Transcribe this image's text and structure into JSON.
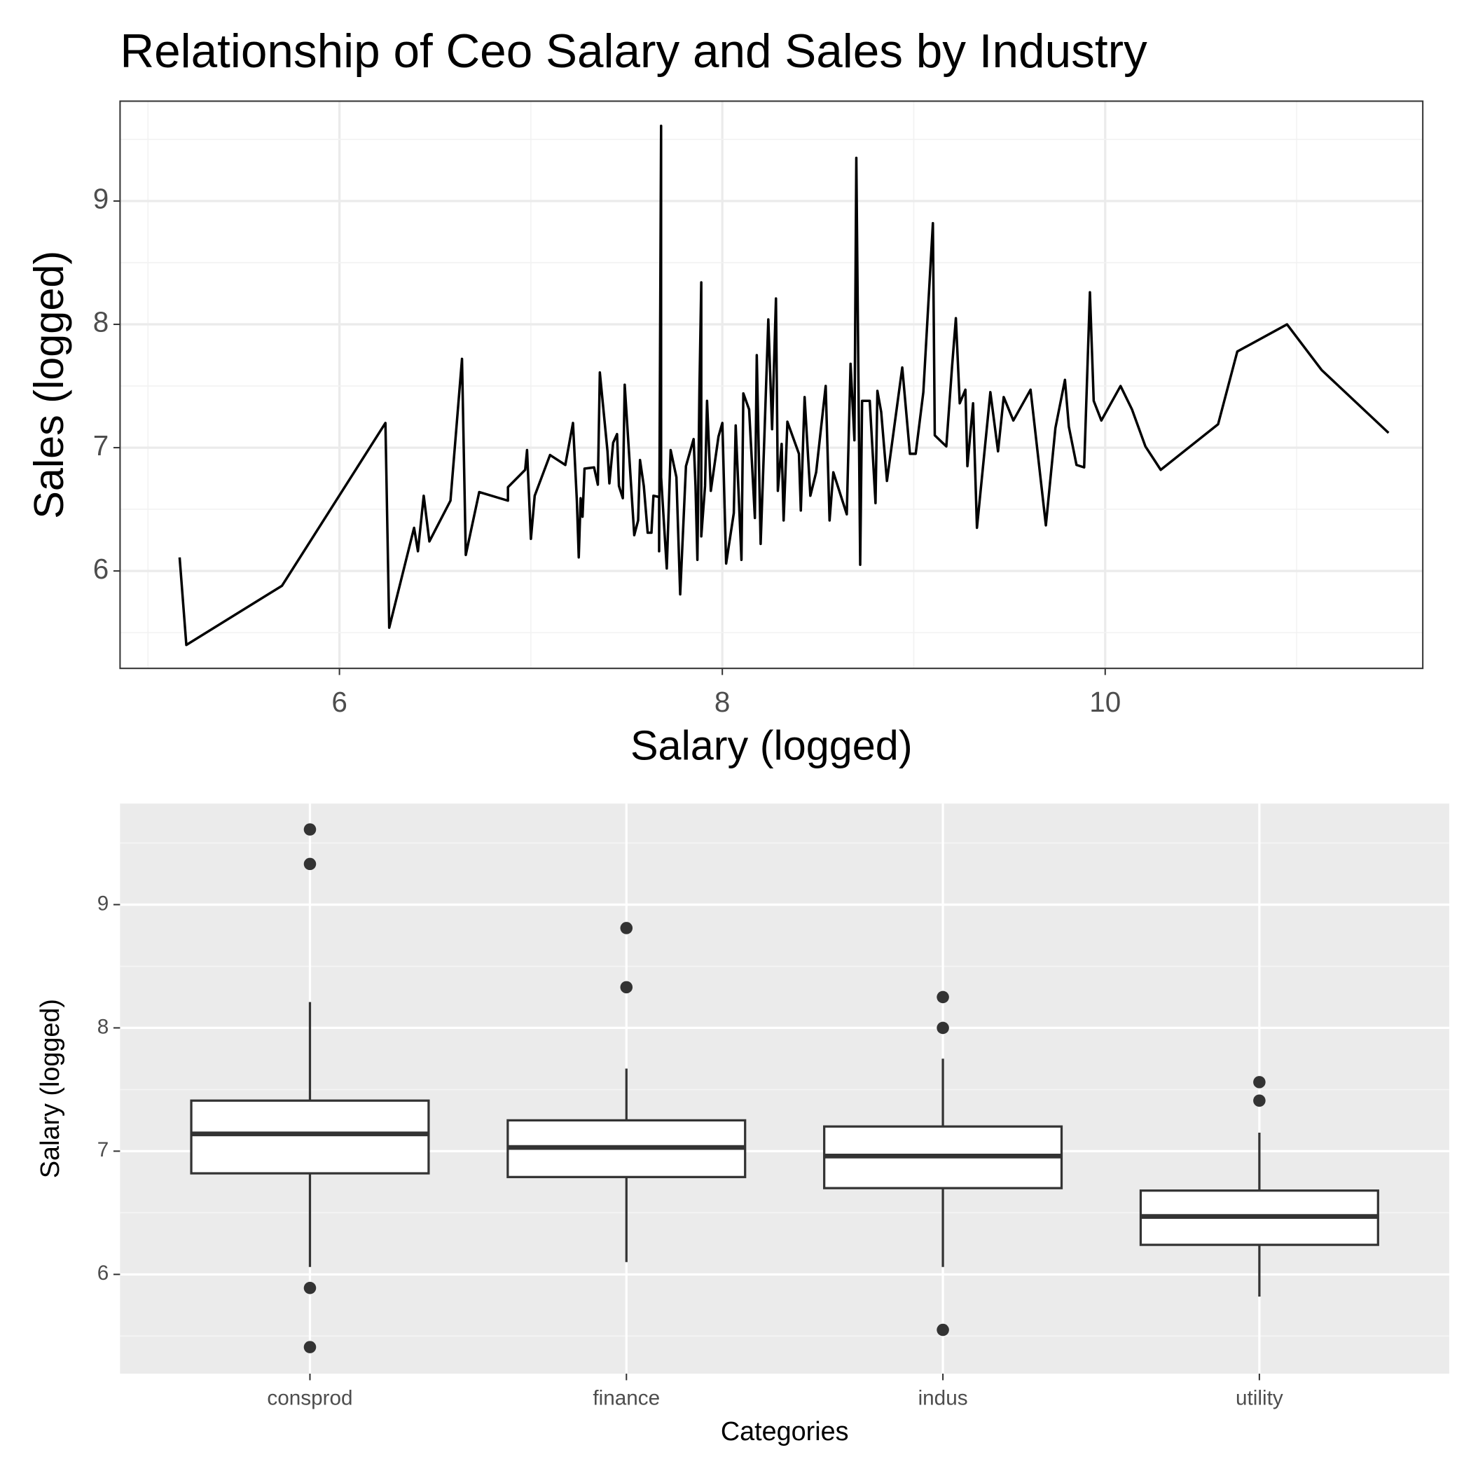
{
  "chart_data": [
    {
      "type": "line",
      "title": "Relationship of Ceo Salary and Sales by Industry",
      "x_label": "Salary (logged)",
      "y_label": "Sales (logged)",
      "x": [
        5.165,
        5.2,
        5.7,
        6.24,
        6.26,
        6.39,
        6.41,
        6.44,
        6.47,
        6.58,
        6.64,
        6.66,
        6.73,
        6.88,
        6.88,
        6.97,
        6.98,
        7.0,
        7.02,
        7.1,
        7.18,
        7.22,
        7.24,
        7.25,
        7.26,
        7.27,
        7.28,
        7.33,
        7.35,
        7.36,
        7.4,
        7.41,
        7.43,
        7.45,
        7.46,
        7.48,
        7.49,
        7.54,
        7.56,
        7.57,
        7.59,
        7.61,
        7.63,
        7.64,
        7.67,
        7.67,
        7.68,
        7.68,
        7.71,
        7.73,
        7.76,
        7.78,
        7.81,
        7.85,
        7.86,
        7.87,
        7.88,
        7.89,
        7.89,
        7.91,
        7.92,
        7.94,
        7.98,
        8.0,
        8.02,
        8.06,
        8.07,
        8.1,
        8.11,
        8.14,
        8.17,
        8.18,
        8.2,
        8.22,
        8.24,
        8.26,
        8.28,
        8.29,
        8.31,
        8.32,
        8.34,
        8.4,
        8.41,
        8.43,
        8.46,
        8.49,
        8.54,
        8.56,
        8.58,
        8.65,
        8.67,
        8.69,
        8.7,
        8.72,
        8.73,
        8.77,
        8.8,
        8.81,
        8.83,
        8.86,
        8.94,
        8.98,
        9.01,
        9.05,
        9.1,
        9.11,
        9.17,
        9.2,
        9.22,
        9.24,
        9.27,
        9.28,
        9.31,
        9.33,
        9.4,
        9.44,
        9.47,
        9.52,
        9.61,
        9.69,
        9.74,
        9.79,
        9.81,
        9.85,
        9.89,
        9.92,
        9.94,
        9.98,
        10.08,
        10.14,
        10.21,
        10.29,
        10.59,
        10.69,
        10.95,
        11.13,
        11.48
      ],
      "y": [
        6.11,
        5.4,
        5.88,
        7.2,
        5.54,
        6.35,
        6.16,
        6.61,
        6.24,
        6.57,
        7.72,
        6.13,
        6.64,
        6.57,
        6.68,
        6.82,
        6.98,
        6.26,
        6.61,
        6.94,
        6.86,
        7.2,
        6.57,
        6.11,
        6.59,
        6.44,
        6.83,
        6.84,
        6.7,
        7.61,
        6.97,
        6.71,
        7.04,
        7.11,
        6.69,
        6.59,
        7.51,
        6.29,
        6.41,
        6.9,
        6.69,
        6.31,
        6.31,
        6.61,
        6.6,
        6.16,
        9.61,
        6.76,
        6.02,
        6.98,
        6.76,
        5.81,
        6.85,
        7.07,
        6.69,
        6.09,
        7.45,
        8.34,
        6.28,
        6.69,
        7.38,
        6.65,
        7.09,
        7.2,
        6.06,
        6.47,
        7.18,
        6.09,
        7.44,
        7.31,
        6.43,
        7.75,
        6.22,
        7.1,
        8.04,
        7.15,
        8.21,
        6.65,
        7.03,
        6.41,
        7.21,
        6.95,
        6.49,
        7.41,
        6.61,
        6.8,
        7.5,
        6.41,
        6.8,
        6.46,
        7.68,
        7.06,
        9.35,
        6.05,
        7.38,
        7.38,
        6.55,
        7.46,
        7.29,
        6.73,
        7.65,
        6.95,
        6.95,
        7.45,
        8.82,
        7.1,
        7.01,
        7.66,
        8.05,
        7.36,
        7.47,
        6.85,
        7.36,
        6.35,
        7.45,
        6.97,
        7.41,
        7.22,
        7.47,
        6.37,
        7.16,
        7.55,
        7.17,
        6.86,
        6.84,
        8.26,
        7.38,
        7.22,
        7.5,
        7.31,
        7.01,
        6.82,
        7.19,
        7.78,
        8.0,
        7.63,
        7.12
      ],
      "color": "#000000",
      "xlim": [
        4.854,
        11.659
      ],
      "xticks": [
        6,
        8,
        10
      ],
      "ylim": [
        5.21,
        9.81
      ],
      "yticks": [
        6,
        7,
        8,
        9
      ],
      "grid": true,
      "minor_grid": true
    },
    {
      "type": "box",
      "x_label": "Categories",
      "y_label": "Salary (logged)",
      "categories": [
        "consprod",
        "finance",
        "indus",
        "utility"
      ],
      "boxes": [
        {
          "whisker_low": 6.06,
          "q1": 6.82,
          "median": 7.14,
          "q3": 7.41,
          "whisker_high": 8.21,
          "outliers": [
            9.61,
            9.33,
            5.89,
            5.41
          ]
        },
        {
          "whisker_low": 6.1,
          "q1": 6.79,
          "median": 7.03,
          "q3": 7.25,
          "whisker_high": 7.67,
          "outliers": [
            8.81,
            8.33
          ]
        },
        {
          "whisker_low": 6.06,
          "q1": 6.7,
          "median": 6.96,
          "q3": 7.2,
          "whisker_high": 7.75,
          "outliers": [
            8.25,
            8.0,
            5.55
          ]
        },
        {
          "whisker_low": 5.82,
          "q1": 6.24,
          "median": 6.47,
          "q3": 6.68,
          "whisker_high": 7.15,
          "outliers": [
            7.56,
            7.41
          ]
        }
      ],
      "color": "#333333",
      "ylim": [
        5.195,
        9.82
      ],
      "yticks": [
        6,
        7,
        8,
        9
      ],
      "grid": true,
      "minor_grid": true
    }
  ]
}
